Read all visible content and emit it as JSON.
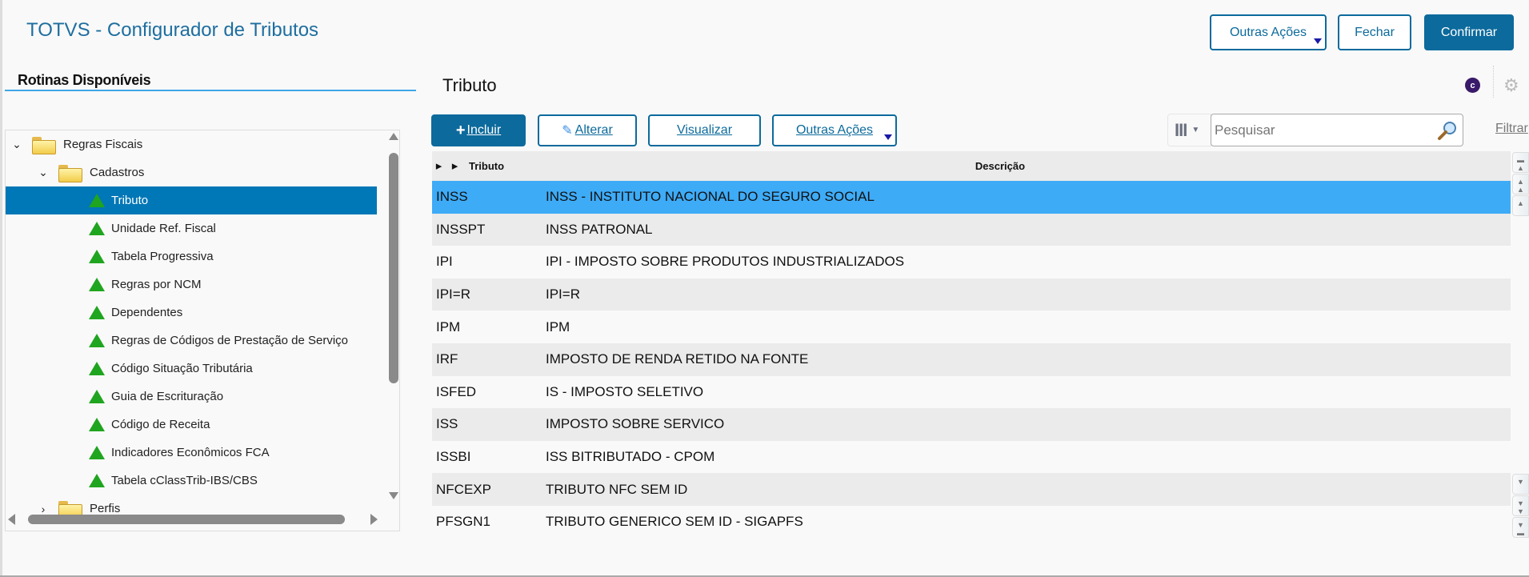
{
  "app_title": "TOTVS - Configurador de Tributos",
  "header_buttons": {
    "other_actions": "Outras Ações",
    "close": "Fechar",
    "confirm": "Confirmar"
  },
  "colors": {
    "primary": "#0c6a9c",
    "tree_selected": "#0077b6",
    "row_selected": "#3eabf7"
  },
  "sidebar": {
    "title": "Rotinas Disponíveis",
    "tree": [
      {
        "label": "Regras Fiscais",
        "level": 0,
        "type": "folder",
        "expanded": true
      },
      {
        "label": "Cadastros",
        "level": 1,
        "type": "folder",
        "expanded": true
      },
      {
        "label": "Tributo",
        "level": 2,
        "type": "item",
        "selected": true
      },
      {
        "label": "Unidade Ref. Fiscal",
        "level": 2,
        "type": "item"
      },
      {
        "label": "Tabela Progressiva",
        "level": 2,
        "type": "item"
      },
      {
        "label": "Regras por NCM",
        "level": 2,
        "type": "item"
      },
      {
        "label": "Dependentes",
        "level": 2,
        "type": "item"
      },
      {
        "label": "Regras de Códigos de Prestação de Serviço",
        "level": 2,
        "type": "item"
      },
      {
        "label": "Código Situação Tributária",
        "level": 2,
        "type": "item"
      },
      {
        "label": "Guia de Escrituração",
        "level": 2,
        "type": "item"
      },
      {
        "label": "Código de Receita",
        "level": 2,
        "type": "item"
      },
      {
        "label": "Indicadores Econômicos FCA",
        "level": 2,
        "type": "item"
      },
      {
        "label": "Tabela cClassTrib-IBS/CBS",
        "level": 2,
        "type": "item"
      },
      {
        "label": "Perfis",
        "level": 1,
        "type": "folder",
        "expanded": false
      }
    ]
  },
  "main": {
    "title": "Tributo",
    "toolbar": {
      "include": "Incluir",
      "edit": "Alterar",
      "view": "Visualizar",
      "other_actions": "Outras Ações"
    },
    "search": {
      "placeholder": "Pesquisar",
      "filter": "Filtrar"
    },
    "grid": {
      "columns": [
        "Tributo",
        "Descrição"
      ],
      "rows": [
        [
          "INSS",
          "INSS - INSTITUTO NACIONAL DO SEGURO SOCIAL"
        ],
        [
          "INSSPT",
          "INSS PATRONAL"
        ],
        [
          "IPI",
          "IPI - IMPOSTO SOBRE PRODUTOS INDUSTRIALIZADOS"
        ],
        [
          "IPI=R",
          "IPI=R"
        ],
        [
          "IPM",
          "IPM"
        ],
        [
          "IRF",
          "IMPOSTO DE RENDA RETIDO NA FONTE"
        ],
        [
          "ISFED",
          "IS - IMPOSTO SELETIVO"
        ],
        [
          "ISS",
          "IMPOSTO SOBRE SERVICO"
        ],
        [
          "ISSBI",
          "ISS BITRIBUTADO - CPOM"
        ],
        [
          "NFCEXP",
          "TRIBUTO NFC SEM ID"
        ],
        [
          "PFSGN1",
          "TRIBUTO GENERICO SEM ID - SIGAPFS"
        ]
      ],
      "selected_row": 0
    }
  }
}
